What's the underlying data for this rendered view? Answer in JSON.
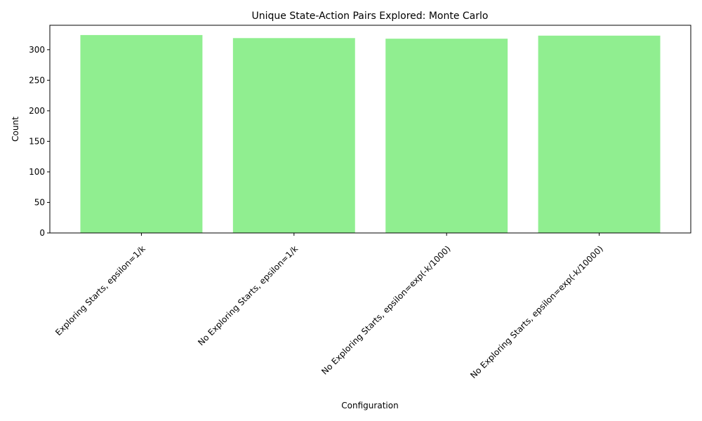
{
  "chart_data": {
    "type": "bar",
    "title": "Unique State-Action Pairs Explored: Monte Carlo",
    "xlabel": "Configuration",
    "ylabel": "Count",
    "categories": [
      "Exploring Starts, epsilon=1/k",
      "No Exploring Starts, epsilon=1/k",
      "No Exploring Starts, epsilon=exp(-k/1000)",
      "No Exploring Starts, epsilon=exp(-k/10000)"
    ],
    "values": [
      324,
      319,
      318,
      323
    ],
    "ylim": [
      0,
      340
    ],
    "yticks": [
      0,
      50,
      100,
      150,
      200,
      250,
      300
    ],
    "bar_color": "#90ee90",
    "grid": false,
    "legend": false
  }
}
